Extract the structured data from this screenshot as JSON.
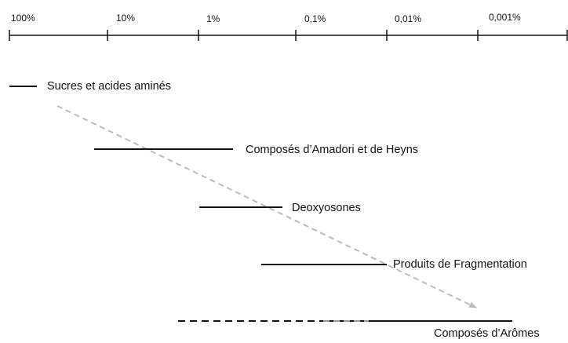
{
  "axis": {
    "ticks": [
      "100%",
      "10%",
      "1%",
      "0,1%",
      "0,01%",
      "0,001%"
    ]
  },
  "items": [
    {
      "label": "Sucres et acides aminés"
    },
    {
      "label": "Composés d’Amadori et de Heyns"
    },
    {
      "label": "Deoxyosones"
    },
    {
      "label": "Produits de Fragmentation"
    },
    {
      "label": "Composés d’Arômes"
    }
  ]
}
